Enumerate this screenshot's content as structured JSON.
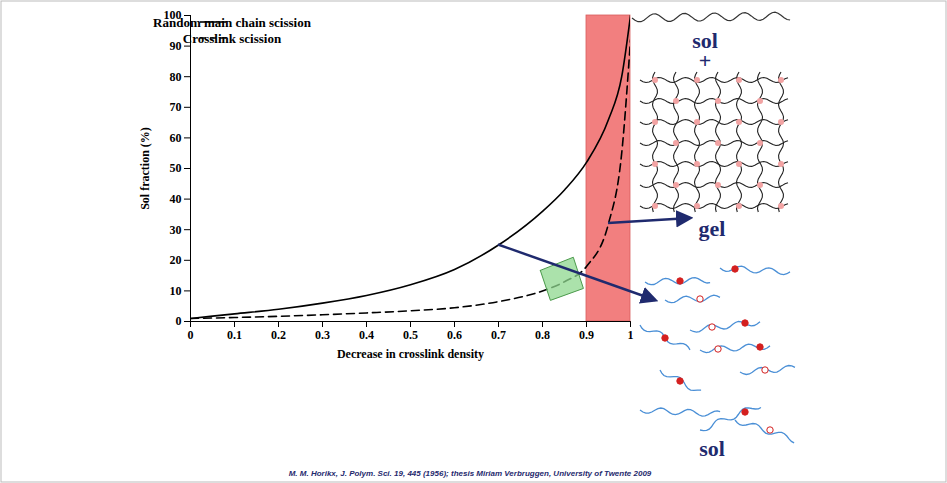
{
  "chart_data": {
    "type": "line",
    "x_label": "Decrease in crosslink density",
    "y_label": "Sol fraction (%)",
    "xlim": [
      0,
      1
    ],
    "ylim": [
      0,
      100
    ],
    "xticks": [
      0,
      0.1,
      0.2,
      0.3,
      0.4,
      0.5,
      0.6,
      0.7,
      0.8,
      0.9,
      1
    ],
    "yticks": [
      0,
      10,
      20,
      30,
      40,
      50,
      60,
      70,
      80,
      90,
      100
    ],
    "grid": false,
    "legend": "top-left",
    "x": [
      0,
      0.1,
      0.2,
      0.3,
      0.4,
      0.5,
      0.6,
      0.7,
      0.8,
      0.85,
      0.9,
      0.95,
      0.98,
      1
    ],
    "series": [
      {
        "name": "Random main chain scission",
        "color": "#000000",
        "line_style": "solid",
        "values": [
          1,
          2.5,
          4,
          6,
          8.5,
          12,
          17,
          25,
          36,
          43,
          52,
          66,
          80,
          100
        ]
      },
      {
        "name": "Crosslink scission",
        "color": "#000000",
        "line_style": "dashed",
        "values": [
          1,
          1.3,
          1.7,
          2.2,
          2.8,
          3.5,
          4.5,
          6.5,
          10,
          13,
          18,
          32,
          55,
          92
        ]
      }
    ],
    "shaded_region": {
      "x": [
        0.9,
        1
      ],
      "color": "#f27f7f"
    },
    "highlight": {
      "points": [
        [
          0.795,
          16.7
        ],
        [
          0.87,
          21
        ],
        [
          0.893,
          10.8
        ],
        [
          0.818,
          6.9
        ]
      ],
      "color": "#8fd88f"
    },
    "annotations": [
      "sol",
      "+",
      "gel",
      "sol"
    ],
    "source": "M. M. Horikx, J. Polym. Sci. 19, 445 (1956); thesis Miriam Verbruggen, University of Twente 2009"
  }
}
